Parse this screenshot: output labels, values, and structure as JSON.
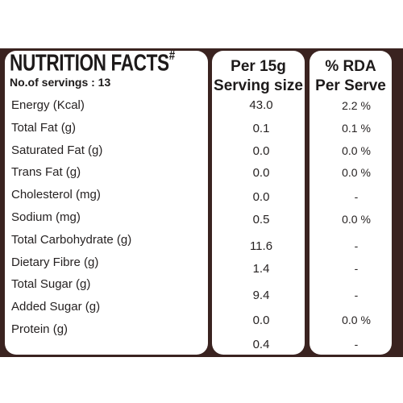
{
  "label": {
    "title": "NUTRITION FACTS",
    "title_mark": "#",
    "servings": "No.of servings : 13",
    "serving_header_line1": "Per 15g",
    "serving_header_line2": "Serving size",
    "rda_header_line1": "% RDA",
    "rda_header_line2": "Per Serve",
    "rows": [
      {
        "nutrient": "Energy (Kcal)",
        "per_serving": "43.0",
        "rda": "2.2 %"
      },
      {
        "nutrient": "Total Fat (g)",
        "per_serving": "0.1",
        "rda": "0.1 %"
      },
      {
        "nutrient": "Saturated Fat (g)",
        "per_serving": "0.0",
        "rda": "0.0 %"
      },
      {
        "nutrient": "Trans Fat (g)",
        "per_serving": "0.0",
        "rda": "0.0 %"
      },
      {
        "nutrient": "Cholesterol (mg)",
        "per_serving": "0.0",
        "rda": "-"
      },
      {
        "nutrient": "Sodium (mg)",
        "per_serving": "0.5",
        "rda": "0.0 %"
      },
      {
        "nutrient": "Total Carbohydrate (g)",
        "per_serving": "11.6",
        "rda": "-"
      },
      {
        "nutrient": "Dietary Fibre (g)",
        "per_serving": "1.4",
        "rda": "-"
      },
      {
        "nutrient": "Total Sugar (g)",
        "per_serving": "9.4",
        "rda": "-"
      },
      {
        "nutrient": "Added Sugar (g)",
        "per_serving": "0.0",
        "rda": "0.0 %"
      },
      {
        "nutrient": "Protein (g)",
        "per_serving": "0.4",
        "rda": "-"
      }
    ]
  },
  "colors": {
    "packaging_brown": "#3a2320",
    "panel_white": "#ffffff",
    "text_dark": "#262222"
  }
}
